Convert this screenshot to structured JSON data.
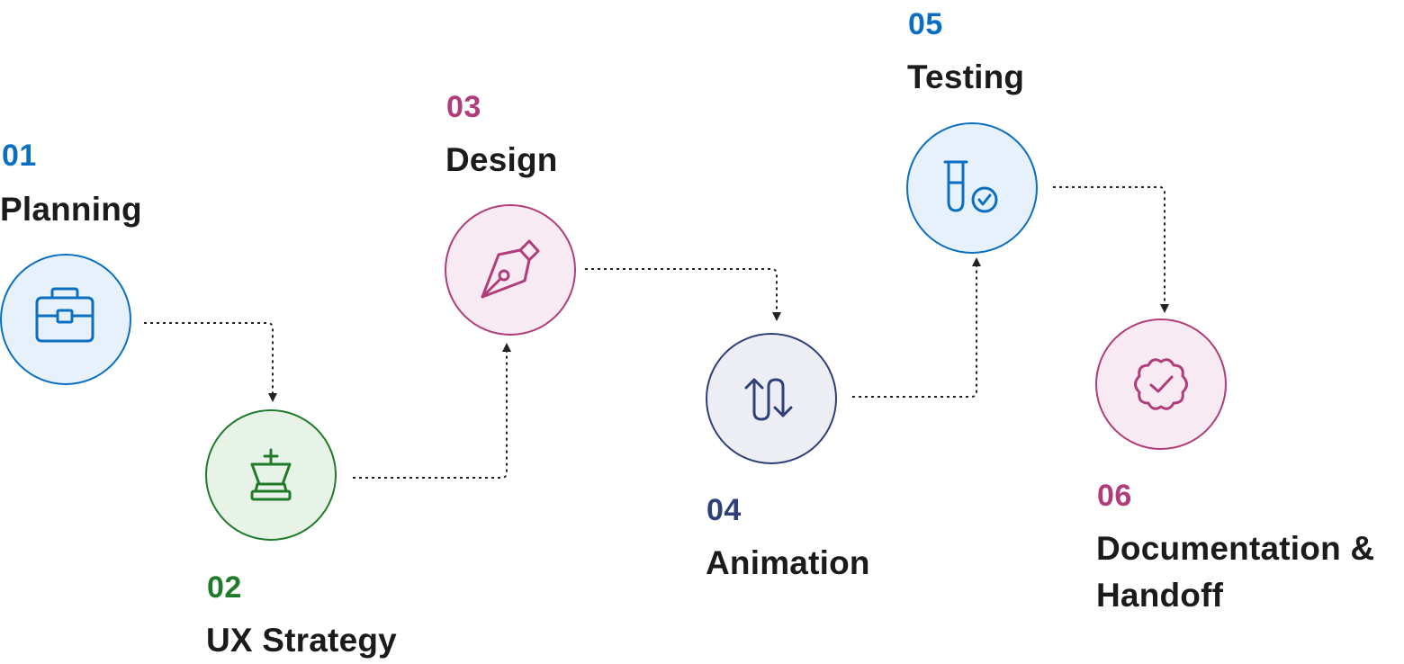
{
  "colors": {
    "planning": "#0a6fc2",
    "ux_strategy": "#1f7a2a",
    "design": "#b03d7a",
    "animation": "#2f3f7a",
    "testing": "#0a6fc2",
    "handoff": "#b03d7a",
    "connector": "#222222",
    "title_text": "#1b1b1b"
  },
  "steps": [
    {
      "number": "01",
      "title_lines": [
        "Planning"
      ],
      "icon": "briefcase-icon"
    },
    {
      "number": "02",
      "title_lines": [
        "UX Strategy"
      ],
      "icon": "chess-king-icon"
    },
    {
      "number": "03",
      "title_lines": [
        "Design"
      ],
      "icon": "pen-nib-icon"
    },
    {
      "number": "04",
      "title_lines": [
        "Animation"
      ],
      "icon": "transition-arrows-icon"
    },
    {
      "number": "05",
      "title_lines": [
        "Testing"
      ],
      "icon": "test-tube-check-icon"
    },
    {
      "number": "06",
      "title_lines": [
        "Documentation &",
        "Handoff"
      ],
      "icon": "badge-check-icon"
    }
  ]
}
